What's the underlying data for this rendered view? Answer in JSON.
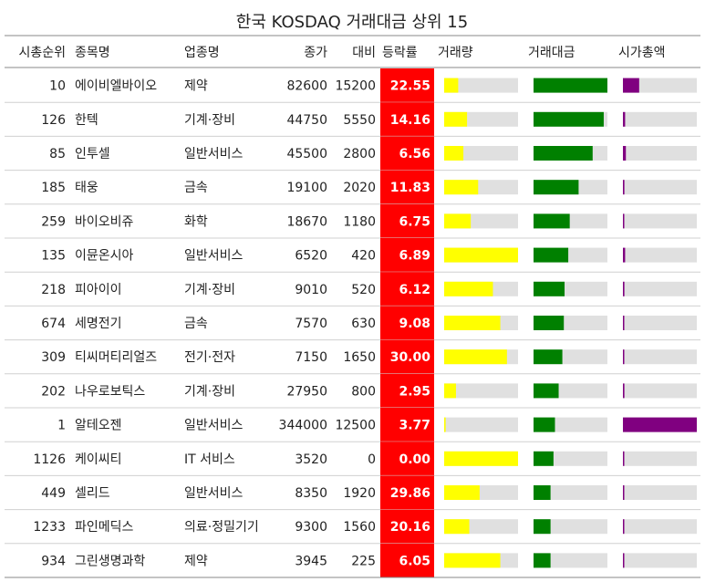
{
  "chart_data": {
    "type": "table",
    "title": "한국 KOSDAQ 거래대금 상위 15",
    "columns": [
      "시총순위",
      "종목명",
      "업종명",
      "종가",
      "대비",
      "등락률",
      "거래량",
      "거래대금",
      "시가총액"
    ],
    "rows": [
      {
        "rank": "10",
        "name": "에이비엘바이오",
        "sector": "제약",
        "close": "82600",
        "change": "15200",
        "rate": "22.55",
        "volume": 0.19,
        "value": 1.0,
        "mcap": 0.22
      },
      {
        "rank": "126",
        "name": "한텍",
        "sector": "기계·장비",
        "close": "44750",
        "change": "5550",
        "rate": "14.16",
        "volume": 0.31,
        "value": 0.95,
        "mcap": 0.03
      },
      {
        "rank": "85",
        "name": "인투셀",
        "sector": "일반서비스",
        "close": "45500",
        "change": "2800",
        "rate": "6.56",
        "volume": 0.26,
        "value": 0.8,
        "mcap": 0.04
      },
      {
        "rank": "185",
        "name": "태웅",
        "sector": "금속",
        "close": "19100",
        "change": "2020",
        "rate": "11.83",
        "volume": 0.46,
        "value": 0.61,
        "mcap": 0.02
      },
      {
        "rank": "259",
        "name": "바이오비쥬",
        "sector": "화학",
        "close": "18670",
        "change": "1180",
        "rate": "6.75",
        "volume": 0.36,
        "value": 0.49,
        "mcap": 0.015
      },
      {
        "rank": "135",
        "name": "이뮨온시아",
        "sector": "일반서비스",
        "close": "6520",
        "change": "420",
        "rate": "6.89",
        "volume": 1.0,
        "value": 0.47,
        "mcap": 0.03
      },
      {
        "rank": "218",
        "name": "피아이이",
        "sector": "기계·장비",
        "close": "9010",
        "change": "520",
        "rate": "6.12",
        "volume": 0.66,
        "value": 0.42,
        "mcap": 0.02
      },
      {
        "rank": "674",
        "name": "세명전기",
        "sector": "금속",
        "close": "7570",
        "change": "630",
        "rate": "9.08",
        "volume": 0.76,
        "value": 0.41,
        "mcap": 0.005
      },
      {
        "rank": "309",
        "name": "티씨머티리얼즈",
        "sector": "전기·전자",
        "close": "7150",
        "change": "1650",
        "rate": "30.00",
        "volume": 0.85,
        "value": 0.39,
        "mcap": 0.012
      },
      {
        "rank": "202",
        "name": "나우로보틱스",
        "sector": "기계·장비",
        "close": "27950",
        "change": "800",
        "rate": "2.95",
        "volume": 0.16,
        "value": 0.34,
        "mcap": 0.02
      },
      {
        "rank": "1",
        "name": "알테오젠",
        "sector": "일반서비스",
        "close": "344000",
        "change": "12500",
        "rate": "3.77",
        "volume": 0.02,
        "value": 0.29,
        "mcap": 1.0
      },
      {
        "rank": "1126",
        "name": "케이씨티",
        "sector": "IT 서비스",
        "close": "3520",
        "change": "0",
        "rate": "0.00",
        "volume": 1.0,
        "value": 0.27,
        "mcap": 0.003
      },
      {
        "rank": "449",
        "name": "셀리드",
        "sector": "일반서비스",
        "close": "8350",
        "change": "1920",
        "rate": "29.86",
        "volume": 0.48,
        "value": 0.23,
        "mcap": 0.008
      },
      {
        "rank": "1233",
        "name": "파인메딕스",
        "sector": "의료·정밀기기",
        "close": "9300",
        "change": "1560",
        "rate": "20.16",
        "volume": 0.34,
        "value": 0.23,
        "mcap": 0.004
      },
      {
        "rank": "934",
        "name": "그린생명과학",
        "sector": "제약",
        "close": "3945",
        "change": "225",
        "rate": "6.05",
        "volume": 0.76,
        "value": 0.23,
        "mcap": 0.005
      }
    ],
    "colors": {
      "rate_bg": "#ff0000",
      "volume_bar": "#ffff00",
      "value_bar": "#008000",
      "mcap_bar": "#800080",
      "bar_track": "#e0e0e0"
    }
  }
}
